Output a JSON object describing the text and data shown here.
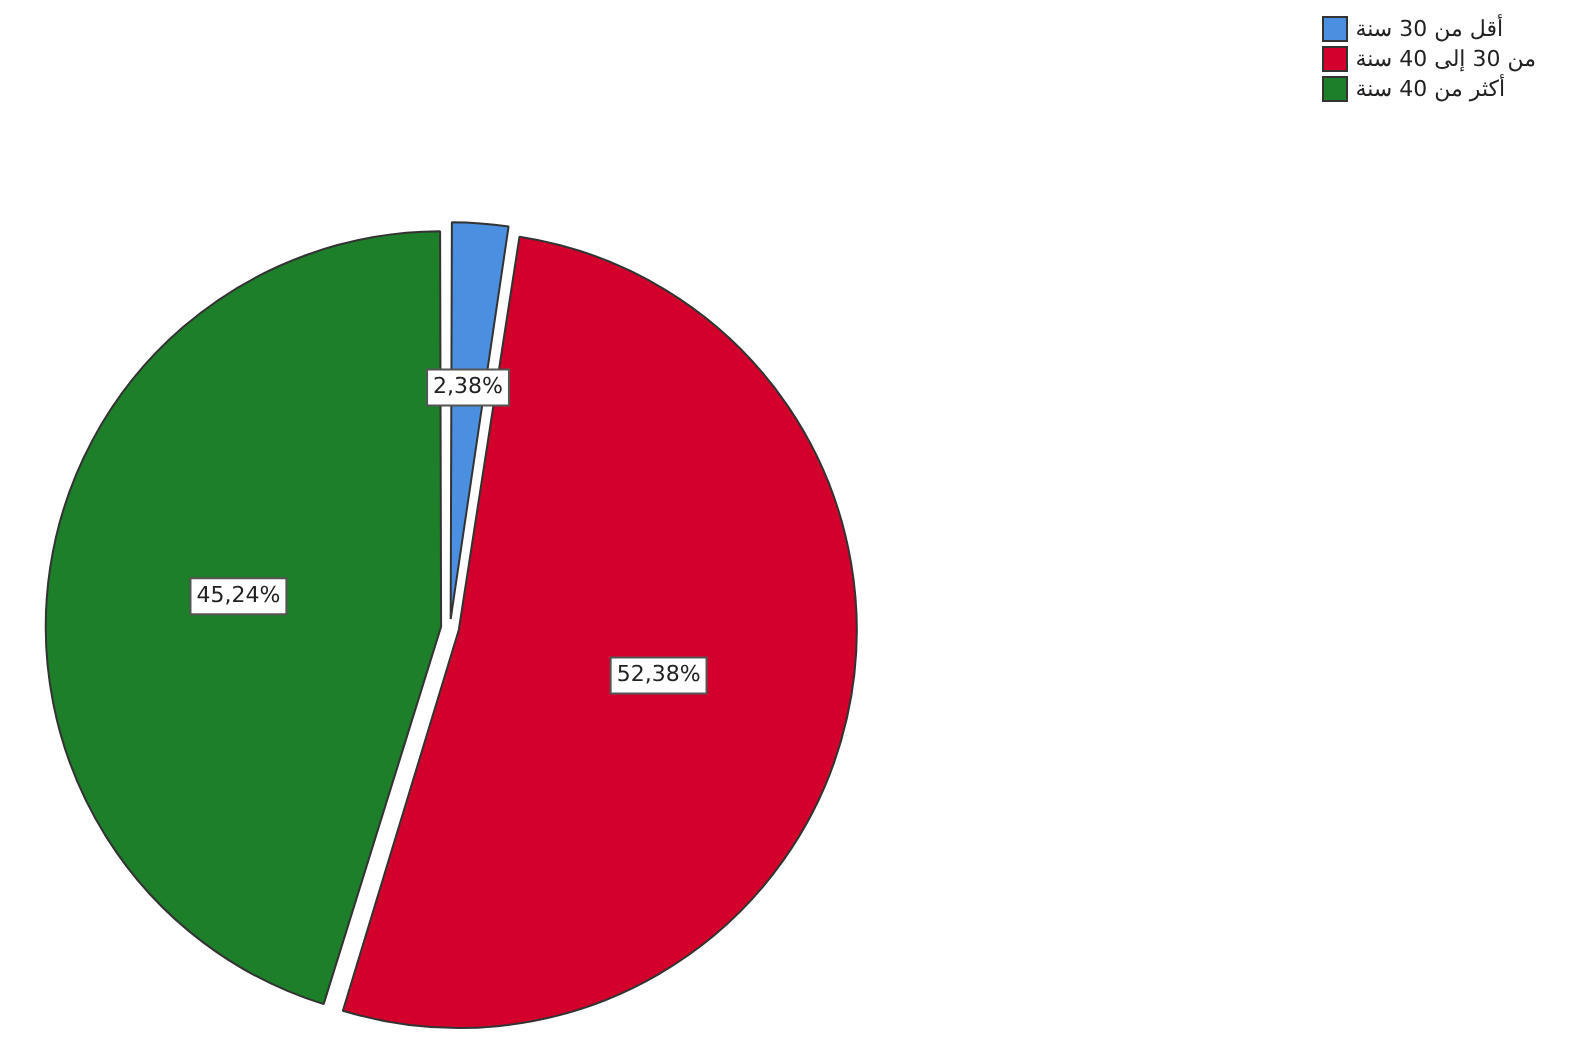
{
  "chart_data": {
    "type": "pie",
    "categories": [
      "أقل من 30 سنة",
      "من 30 إلى 40 سنة",
      "أكثر من 40 سنة"
    ],
    "values": [
      2.38,
      52.38,
      45.24
    ],
    "colors": [
      "#4a8fe0",
      "#d2002a",
      "#1e7f2a"
    ],
    "value_labels": [
      "2,38%",
      "52,38%",
      "45,24%"
    ],
    "legend": "top right"
  }
}
